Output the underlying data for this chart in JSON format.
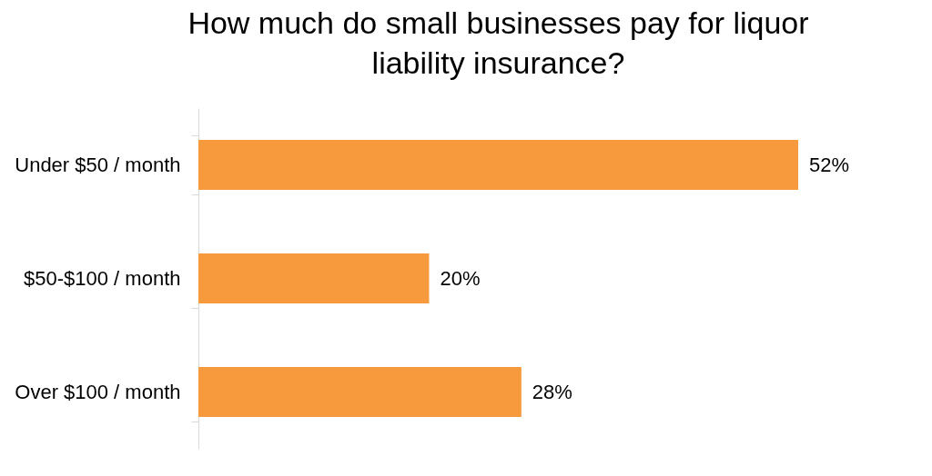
{
  "chart_data": {
    "type": "bar",
    "orientation": "horizontal",
    "title": "How much do small businesses pay for liquor liability insurance?",
    "categories": [
      "Under $50 / month",
      "$50-$100 / month",
      "Over $100 / month"
    ],
    "values": [
      52,
      20,
      28
    ],
    "value_labels": [
      "52%",
      "20%",
      "28%"
    ],
    "color": "#f79a3e",
    "grid": false
  }
}
